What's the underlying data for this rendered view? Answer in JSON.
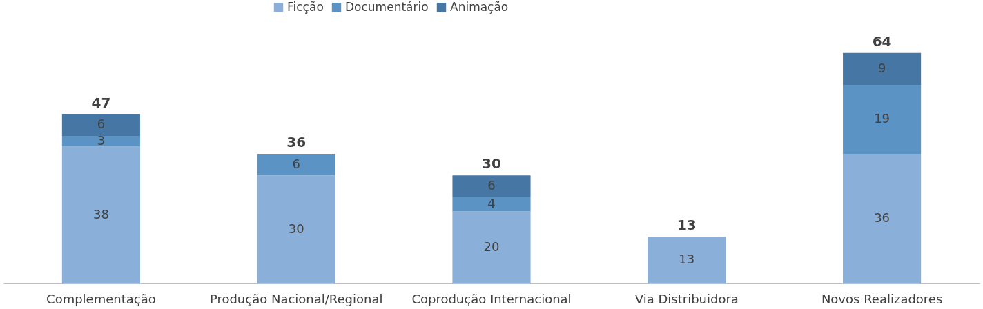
{
  "chart_data": {
    "type": "bar",
    "stacked": true,
    "data_labels": true,
    "legend": "top",
    "grid": false,
    "categories": [
      "Complementação",
      "Produção Nacional/Regional",
      "Coprodução Internacional",
      "Via Distribuidora",
      "Novos Realizadores"
    ],
    "series": [
      {
        "name": "Ficção",
        "color": "#8aafd9",
        "values": [
          38,
          30,
          20,
          13,
          36
        ]
      },
      {
        "name": "Documentário",
        "color": "#5b93c5",
        "values": [
          3,
          6,
          4,
          null,
          19
        ]
      },
      {
        "name": "Animação",
        "color": "#4676a3",
        "values": [
          6,
          null,
          6,
          null,
          9
        ]
      }
    ],
    "totals": [
      "47",
      "36",
      "30",
      "13",
      "64"
    ]
  }
}
